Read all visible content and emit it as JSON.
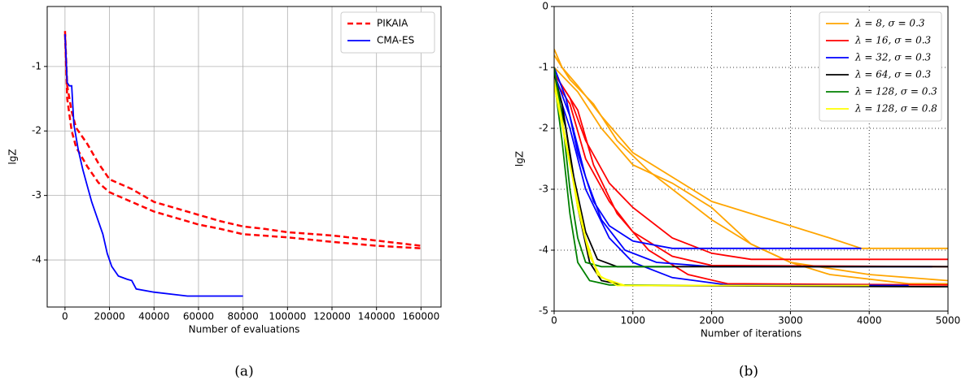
{
  "chart_data": [
    {
      "type": "line",
      "caption": "(a)",
      "xlabel": "Number of evaluations",
      "ylabel": "lgZ",
      "xlim": [
        -8000,
        169000
      ],
      "ylim": [
        -4.73,
        -0.07
      ],
      "xticks": [
        0,
        20000,
        40000,
        60000,
        80000,
        100000,
        120000,
        140000,
        160000
      ],
      "yticks": [
        -4,
        -3,
        -2,
        -1
      ],
      "grid": "solid",
      "legend": "upper right",
      "series": [
        {
          "name": "PIKAIA",
          "color": "#ff0000",
          "dashed": true,
          "runs": [
            {
              "x": [
                0,
                1000,
                3000,
                5000,
                10000,
                15000,
                20000,
                30000,
                40000,
                50000,
                60000,
                70000,
                80000,
                90000,
                100000,
                120000,
                140000,
                160000
              ],
              "values": [
                -0.45,
                -1.3,
                -1.7,
                -1.95,
                -2.2,
                -2.5,
                -2.75,
                -2.9,
                -3.1,
                -3.2,
                -3.3,
                -3.4,
                -3.48,
                -3.52,
                -3.57,
                -3.62,
                -3.7,
                -3.78
              ]
            },
            {
              "x": [
                0,
                1000,
                3000,
                5000,
                10000,
                15000,
                20000,
                30000,
                40000,
                50000,
                60000,
                70000,
                80000,
                100000,
                120000,
                140000,
                160000
              ],
              "values": [
                -0.5,
                -1.5,
                -2.0,
                -2.25,
                -2.55,
                -2.8,
                -2.95,
                -3.1,
                -3.25,
                -3.35,
                -3.45,
                -3.52,
                -3.6,
                -3.65,
                -3.72,
                -3.78,
                -3.82
              ]
            }
          ]
        },
        {
          "name": "CMA-ES",
          "color": "#0000ff",
          "dashed": false,
          "runs": [
            {
              "x": [
                0,
                1000,
                2000,
                3000,
                4000,
                6000,
                8000,
                10000,
                12000,
                15000,
                17000,
                19000,
                21000,
                24000,
                28000,
                30000,
                32000,
                40000,
                50000,
                55000,
                80000
              ],
              "values": [
                -0.5,
                -1.25,
                -1.3,
                -1.3,
                -1.9,
                -2.3,
                -2.6,
                -2.85,
                -3.1,
                -3.4,
                -3.6,
                -3.9,
                -4.1,
                -4.25,
                -4.3,
                -4.32,
                -4.45,
                -4.5,
                -4.54,
                -4.56,
                -4.56
              ]
            }
          ]
        }
      ]
    },
    {
      "type": "line",
      "caption": "(b)",
      "xlabel": "Number of iterations",
      "ylabel": "lgZ",
      "xlim": [
        0,
        5000
      ],
      "ylim": [
        -5,
        0
      ],
      "xticks": [
        0,
        1000,
        2000,
        3000,
        4000,
        5000
      ],
      "yticks": [
        -5,
        -4,
        -3,
        -2,
        -1,
        0
      ],
      "grid": "dotted",
      "legend": "upper right",
      "series": [
        {
          "name": "λ = 8, σ = 0.3",
          "color": "#ffa500",
          "dashed": false,
          "runs": [
            {
              "x": [
                0,
                100,
                300,
                600,
                1000,
                1500,
                2000,
                2500,
                3000,
                3500,
                3900,
                5000
              ],
              "values": [
                -0.7,
                -1.0,
                -1.3,
                -1.8,
                -2.4,
                -2.8,
                -3.2,
                -3.4,
                -3.6,
                -3.8,
                -3.97,
                -3.97
              ]
            },
            {
              "x": [
                0,
                200,
                500,
                800,
                1200,
                1700,
                2000,
                2500,
                3000,
                4000,
                5000
              ],
              "values": [
                -0.8,
                -1.2,
                -1.6,
                -2.2,
                -2.7,
                -3.2,
                -3.5,
                -3.9,
                -4.2,
                -4.4,
                -4.5
              ]
            },
            {
              "x": [
                0,
                300,
                600,
                1000,
                1500,
                2000,
                2500,
                3000,
                3500,
                4500,
                5000
              ],
              "values": [
                -1.0,
                -1.4,
                -2.0,
                -2.6,
                -2.9,
                -3.3,
                -3.9,
                -4.2,
                -4.4,
                -4.55,
                -4.55
              ]
            }
          ]
        },
        {
          "name": "λ = 16, σ = 0.3",
          "color": "#ff0000",
          "dashed": false,
          "runs": [
            {
              "x": [
                0,
                200,
                400,
                700,
                1000,
                1500,
                2000,
                2500,
                5000
              ],
              "values": [
                -1.1,
                -1.5,
                -2.2,
                -2.9,
                -3.3,
                -3.8,
                -4.05,
                -4.15,
                -4.15
              ]
            },
            {
              "x": [
                0,
                200,
                400,
                700,
                1000,
                1500,
                2000,
                5000
              ],
              "values": [
                -1.2,
                -1.6,
                -2.5,
                -3.2,
                -3.7,
                -4.1,
                -4.25,
                -4.27
              ]
            },
            {
              "x": [
                0,
                300,
                500,
                800,
                1200,
                1700,
                2200,
                5000
              ],
              "values": [
                -1.1,
                -1.7,
                -2.6,
                -3.4,
                -4.0,
                -4.4,
                -4.55,
                -4.57
              ]
            }
          ]
        },
        {
          "name": "λ = 32, σ = 0.3",
          "color": "#0000ff",
          "dashed": false,
          "runs": [
            {
              "x": [
                0,
                150,
                300,
                500,
                700,
                1000,
                1500,
                3900
              ],
              "values": [
                -1.0,
                -1.5,
                -2.4,
                -3.2,
                -3.6,
                -3.85,
                -3.97,
                -3.97
              ]
            },
            {
              "x": [
                0,
                200,
                400,
                600,
                900,
                1300,
                2000,
                4800
              ],
              "values": [
                -1.1,
                -1.8,
                -2.8,
                -3.5,
                -4.0,
                -4.2,
                -4.27,
                -4.27
              ]
            },
            {
              "x": [
                0,
                200,
                400,
                700,
                1000,
                1500,
                2200,
                4500
              ],
              "values": [
                -1.2,
                -2.0,
                -3.0,
                -3.8,
                -4.2,
                -4.45,
                -4.57,
                -4.58
              ]
            }
          ]
        },
        {
          "name": "λ = 64, σ = 0.3",
          "color": "#000000",
          "dashed": false,
          "runs": [
            {
              "x": [
                0,
                100,
                250,
                400,
                550,
                800,
                5000
              ],
              "values": [
                -1.1,
                -1.6,
                -2.8,
                -3.7,
                -4.15,
                -4.27,
                -4.27
              ]
            },
            {
              "x": [
                0,
                150,
                300,
                450,
                600,
                900,
                5000
              ],
              "values": [
                -1.2,
                -2.0,
                -3.3,
                -4.2,
                -4.5,
                -4.58,
                -4.6
              ]
            }
          ]
        },
        {
          "name": "λ = 128, σ = 0.3",
          "color": "#008000",
          "dashed": false,
          "runs": [
            {
              "x": [
                0,
                100,
                200,
                300,
                400,
                600,
                1500
              ],
              "values": [
                -1.0,
                -1.8,
                -3.0,
                -3.8,
                -4.2,
                -4.27,
                -4.27
              ]
            },
            {
              "x": [
                0,
                100,
                200,
                300,
                450,
                700,
                2000
              ],
              "values": [
                -1.2,
                -2.2,
                -3.4,
                -4.2,
                -4.5,
                -4.57,
                -4.58
              ]
            }
          ]
        },
        {
          "name": "λ = 128, σ = 0.8",
          "color": "#ffff00",
          "dashed": false,
          "runs": [
            {
              "x": [
                0,
                150,
                300,
                450,
                600,
                900,
                4000
              ],
              "values": [
                -1.2,
                -2.2,
                -3.3,
                -4.1,
                -4.45,
                -4.58,
                -4.58
              ]
            },
            {
              "x": [
                0,
                200,
                400,
                550,
                800,
                3000
              ],
              "values": [
                -1.3,
                -2.6,
                -3.8,
                -4.4,
                -4.58,
                -4.58
              ]
            }
          ]
        }
      ]
    }
  ]
}
